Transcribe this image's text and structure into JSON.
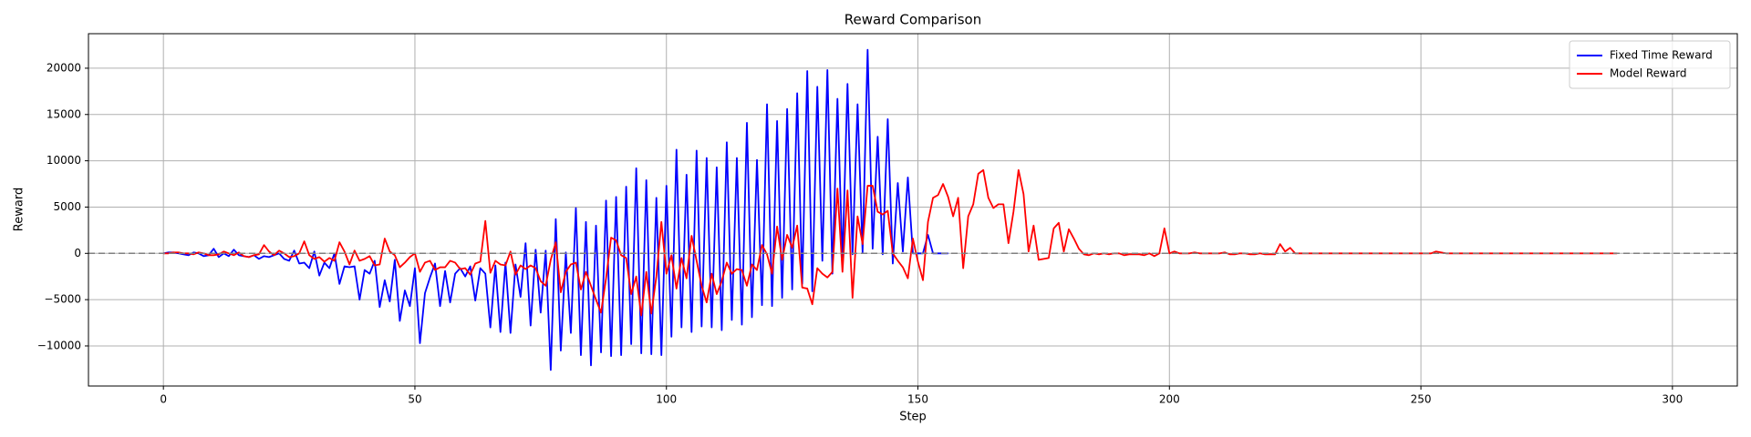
{
  "chart_data": {
    "type": "line",
    "title": "Reward Comparison",
    "x_label": "Step",
    "y_label": "Reward",
    "xlim": [
      -14.9,
      312.9
    ],
    "ylim": [
      -14330,
      23730
    ],
    "xticks": [
      0,
      50,
      100,
      150,
      200,
      250,
      300
    ],
    "yticks": [
      {
        "value": -10000,
        "label": "−10000"
      },
      {
        "value": -5000,
        "label": "−5000"
      },
      0,
      5000,
      10000,
      15000,
      20000
    ],
    "grid": true,
    "legend": "upper right",
    "hline": 0,
    "hline_color": "#808080",
    "series": [
      {
        "name": "Fixed Time Reward",
        "color": "#0000ff",
        "values": [
          0,
          100,
          100,
          0,
          -100,
          -200,
          100,
          0,
          -300,
          -200,
          500,
          -400,
          0,
          -300,
          400,
          -200,
          -300,
          -400,
          -200,
          -600,
          -300,
          -400,
          -200,
          0,
          -600,
          -800,
          300,
          -1100,
          -1000,
          -1600,
          200,
          -2400,
          -1000,
          -1600,
          0,
          -3300,
          -1400,
          -1500,
          -1400,
          -5000,
          -1800,
          -2200,
          -800,
          -5800,
          -2900,
          -5200,
          -700,
          -7300,
          -4000,
          -5700,
          -1600,
          -9700,
          -4300,
          -2600,
          -1100,
          -5700,
          -1900,
          -5300,
          -2200,
          -1600,
          -2500,
          -1400,
          -5100,
          -1600,
          -2200,
          -8000,
          -1300,
          -8500,
          -1000,
          -8600,
          -1200,
          -4700,
          1100,
          -7800,
          400,
          -6400,
          300,
          -12600,
          3700,
          -10500,
          100,
          -8600,
          4900,
          -11000,
          3400,
          -12100,
          3000,
          -10700,
          5700,
          -11100,
          6100,
          -11000,
          7200,
          -9800,
          9200,
          -10800,
          7900,
          -10900,
          6000,
          -11000,
          7300,
          -9000,
          11200,
          -8000,
          8500,
          -8500,
          11100,
          -7900,
          10300,
          -8000,
          9300,
          -8300,
          12000,
          -7200,
          10300,
          -7700,
          14100,
          -6900,
          10100,
          -5600,
          16100,
          -5700,
          14300,
          -4800,
          15600,
          -3900,
          17300,
          -3300,
          19700,
          -4100,
          18000,
          -800,
          19800,
          -2200,
          16700,
          -800,
          18300,
          -100,
          16100,
          100,
          22000,
          500,
          12600,
          -100,
          14500,
          -1100,
          7600,
          200,
          8200,
          0,
          0,
          0,
          2000,
          0,
          0,
          0,
          0
        ]
      },
      {
        "name": "Model Reward",
        "color": "#ff0000",
        "values": [
          0,
          0,
          100,
          100,
          0,
          0,
          -100,
          100,
          0,
          -200,
          -200,
          -100,
          200,
          0,
          -200,
          100,
          -300,
          -400,
          -200,
          -100,
          900,
          200,
          -200,
          300,
          0,
          -400,
          -300,
          0,
          1300,
          -200,
          -600,
          -400,
          -900,
          -500,
          -800,
          1200,
          200,
          -1200,
          300,
          -800,
          -600,
          -300,
          -1300,
          -1200,
          1600,
          200,
          -200,
          -1500,
          -1000,
          -400,
          0,
          -2000,
          -1000,
          -800,
          -1800,
          -1500,
          -1500,
          -800,
          -1000,
          -1700,
          -1600,
          -2300,
          -1100,
          -900,
          3500,
          -2100,
          -800,
          -1200,
          -1300,
          200,
          -2300,
          -1300,
          -1700,
          -1300,
          -1600,
          -3000,
          -3500,
          -700,
          1200,
          -4200,
          -2000,
          -1200,
          -1000,
          -3900,
          -2000,
          -3500,
          -5000,
          -6400,
          -2700,
          1700,
          1400,
          -200,
          -500,
          -4400,
          -2500,
          -6700,
          -2000,
          -6500,
          -2500,
          3400,
          -2200,
          -200,
          -3800,
          -500,
          -2700,
          1900,
          -800,
          -3500,
          -5300,
          -2200,
          -4400,
          -3000,
          -1000,
          -2200,
          -1700,
          -1800,
          -3500,
          -1200,
          -1800,
          900,
          -100,
          -2200,
          2900,
          -700,
          2000,
          600,
          3000,
          -3700,
          -3800,
          -5500,
          -1600,
          -2200,
          -2600,
          -2000,
          7000,
          -2000,
          6800,
          -4800,
          4000,
          1000,
          7300,
          7300,
          4500,
          4200,
          4600,
          0,
          -800,
          -1500,
          -2700,
          1600,
          -900,
          -2900,
          3400,
          6000,
          6300,
          7500,
          6100,
          4000,
          6000,
          -1600,
          4000,
          5300,
          8600,
          9000,
          6000,
          4900,
          5300,
          5300,
          1100,
          4500,
          9000,
          6400,
          200,
          3000,
          -700,
          -600,
          -500,
          2700,
          3300,
          200,
          2600,
          1600,
          500,
          -100,
          -200,
          0,
          -100,
          0,
          -100,
          0,
          0,
          -200,
          -100,
          -100,
          -100,
          -200,
          0,
          -300,
          0,
          2700,
          0,
          200,
          0,
          0,
          0,
          100,
          0,
          0,
          0,
          0,
          0,
          100,
          -100,
          -100,
          0,
          0,
          -100,
          -100,
          0,
          -100,
          -100,
          -100,
          1000,
          200,
          600,
          0,
          0,
          0,
          0,
          0,
          0,
          0,
          0,
          0,
          0,
          0,
          0,
          0,
          0,
          0,
          0,
          0,
          0,
          0,
          0,
          0,
          0,
          0,
          0,
          0,
          0,
          0,
          0,
          200,
          100,
          0,
          0,
          0,
          0,
          0,
          0,
          0,
          0,
          0,
          0,
          0,
          0,
          0,
          0,
          0,
          0,
          0,
          0,
          0,
          0,
          0,
          0,
          0,
          0,
          0,
          0,
          0,
          0,
          0,
          0,
          0,
          0,
          0,
          0,
          0
        ]
      }
    ]
  }
}
